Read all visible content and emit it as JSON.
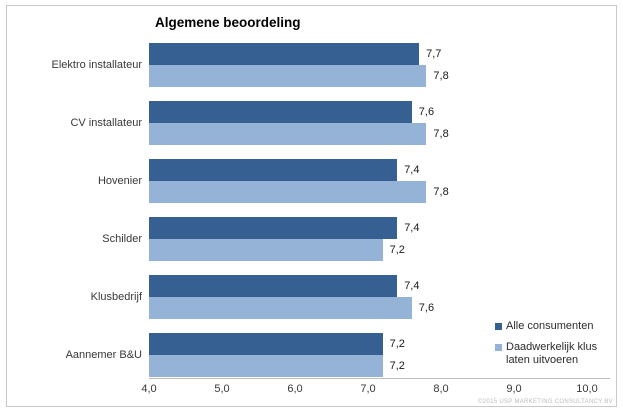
{
  "chart_data": {
    "type": "bar",
    "orientation": "horizontal",
    "title": "Algemene beoordeling",
    "categories": [
      "Elektro installateur",
      "CV installateur",
      "Hovenier",
      "Schilder",
      "Klusbedrijf",
      "Aannemer B&U"
    ],
    "series": [
      {
        "name": "Alle consumenten",
        "color": "#376092",
        "values": [
          7.7,
          7.6,
          7.4,
          7.4,
          7.4,
          7.2
        ],
        "labels": [
          "7,7",
          "7,6",
          "7,4",
          "7,4",
          "7,4",
          "7,2"
        ]
      },
      {
        "name": "Daadwerkelijk klus laten uitvoeren",
        "color": "#95B3D7",
        "values": [
          7.8,
          7.8,
          7.8,
          7.2,
          7.6,
          7.2
        ],
        "labels": [
          "7,8",
          "7,8",
          "7,8",
          "7,2",
          "7,6",
          "7,2"
        ]
      }
    ],
    "x_axis": {
      "min": 4.0,
      "max": 10.0,
      "ticks": [
        "4,0",
        "5,0",
        "6,0",
        "7,0",
        "8,0",
        "9,0",
        "10,0"
      ]
    },
    "grid": false,
    "legend_position": "right-bottom"
  },
  "footer": {
    "copyright": "©2015 USP MARKETING CONSULTANCY BV"
  },
  "colors": {
    "series_dark": "#376092",
    "series_light": "#95B3D7",
    "axis_line": "#bfbfbf",
    "frame_border": "#c9c9c9"
  }
}
